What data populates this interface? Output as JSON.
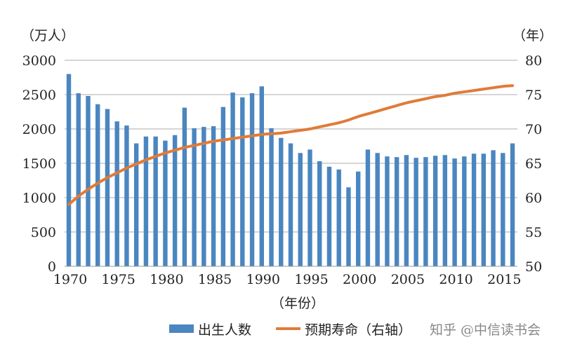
{
  "chart_data": {
    "type": "bar+line",
    "title": "",
    "xlabel": "（年份）",
    "ylabel_left": "（万人）",
    "ylabel_right": "（年）",
    "ylim_left": [
      0,
      3000
    ],
    "ylim_right": [
      50,
      80
    ],
    "yticks_left": [
      "0",
      "500",
      "1000",
      "1500",
      "2000",
      "2500",
      "3000"
    ],
    "yticks_right": [
      "50",
      "55",
      "60",
      "65",
      "70",
      "75",
      "80"
    ],
    "xticks": [
      "1970",
      "1975",
      "1980",
      "1985",
      "1990",
      "1995",
      "2000",
      "2005",
      "2010",
      "2015"
    ],
    "grid": "horizontal",
    "legend_position": "bottom",
    "years": [
      1970,
      1971,
      1972,
      1973,
      1974,
      1975,
      1976,
      1977,
      1978,
      1979,
      1980,
      1981,
      1982,
      1983,
      1984,
      1985,
      1986,
      1987,
      1988,
      1989,
      1990,
      1991,
      1992,
      1993,
      1994,
      1995,
      1996,
      1997,
      1998,
      1999,
      2000,
      2001,
      2002,
      2003,
      2004,
      2005,
      2006,
      2007,
      2008,
      2009,
      2010,
      2011,
      2012,
      2013,
      2014,
      2015,
      2016
    ],
    "series": [
      {
        "name": "出生人数",
        "type": "bar",
        "axis": "left",
        "color": "#4a86c0",
        "values": [
          2800,
          2520,
          2480,
          2360,
          2290,
          2110,
          2050,
          1790,
          1890,
          1890,
          1830,
          1910,
          2310,
          2010,
          2030,
          2040,
          2320,
          2530,
          2460,
          2520,
          2620,
          2010,
          1870,
          1790,
          1650,
          1700,
          1530,
          1450,
          1410,
          1150,
          1380,
          1700,
          1650,
          1600,
          1590,
          1620,
          1580,
          1590,
          1610,
          1620,
          1570,
          1600,
          1640,
          1640,
          1690,
          1650,
          1790
        ]
      },
      {
        "name": "预期寿命（右轴）",
        "type": "line",
        "axis": "right",
        "color": "#e07b39",
        "values": [
          59.0,
          60.2,
          61.2,
          62.1,
          62.9,
          63.6,
          64.3,
          64.9,
          65.5,
          66.0,
          66.5,
          66.9,
          67.3,
          67.6,
          67.9,
          68.2,
          68.4,
          68.6,
          68.8,
          69.0,
          69.2,
          69.3,
          69.4,
          69.6,
          69.8,
          70.0,
          70.3,
          70.6,
          70.9,
          71.3,
          71.8,
          72.2,
          72.6,
          73.0,
          73.4,
          73.8,
          74.1,
          74.4,
          74.7,
          74.9,
          75.2,
          75.4,
          75.6,
          75.8,
          76.0,
          76.2,
          76.3
        ]
      }
    ]
  },
  "watermark": "知乎 @中信读书会"
}
